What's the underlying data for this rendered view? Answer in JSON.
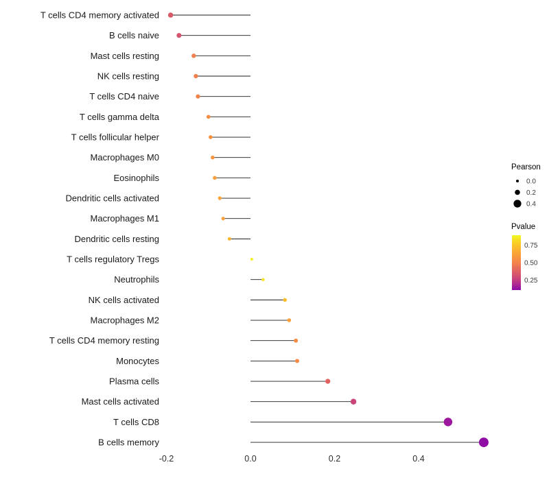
{
  "figure": {
    "background": "#ffffff",
    "stem_color": "#1a1a1a"
  },
  "chart_data": {
    "type": "scatter",
    "subtype": "lollipop",
    "orientation": "horizontal",
    "title": "",
    "xlabel": "",
    "ylabel": "",
    "grid": false,
    "xlim": [
      -0.27,
      0.6
    ],
    "x_ticks": [
      -0.2,
      0.0,
      0.2,
      0.4
    ],
    "x_tick_labels": [
      "-0.2",
      "0.0",
      "0.2",
      "0.4"
    ],
    "points": [
      {
        "label": "T cells CD4 memory activated",
        "pearson": -0.19,
        "pvalue": 0.46,
        "color": "#D85A68"
      },
      {
        "label": "B cells naive",
        "pearson": -0.17,
        "pvalue": 0.47,
        "color": "#D5546D"
      },
      {
        "label": "Mast cells resting",
        "pearson": -0.135,
        "pvalue": 0.62,
        "color": "#F0804F"
      },
      {
        "label": "NK cells resting",
        "pearson": -0.13,
        "pvalue": 0.62,
        "color": "#F0814E"
      },
      {
        "label": "T cells CD4 naive",
        "pearson": -0.125,
        "pvalue": 0.63,
        "color": "#F1854B"
      },
      {
        "label": "T cells gamma delta",
        "pearson": -0.1,
        "pvalue": 0.68,
        "color": "#F79044"
      },
      {
        "label": "T cells follicular helper",
        "pearson": -0.095,
        "pvalue": 0.68,
        "color": "#F89241"
      },
      {
        "label": "Macrophages M0",
        "pearson": -0.09,
        "pvalue": 0.69,
        "color": "#F9953F"
      },
      {
        "label": "Eosinophils",
        "pearson": -0.085,
        "pvalue": 0.71,
        "color": "#FA9D3B"
      },
      {
        "label": "Dendritic cells activated",
        "pearson": -0.073,
        "pvalue": 0.72,
        "color": "#FBA238"
      },
      {
        "label": "Macrophages M1",
        "pearson": -0.065,
        "pvalue": 0.71,
        "color": "#FA9F3A"
      },
      {
        "label": "Dendritic cells resting",
        "pearson": -0.05,
        "pvalue": 0.77,
        "color": "#FBB42F"
      },
      {
        "label": "T cells regulatory  Tregs",
        "pearson": 0.003,
        "pvalue": 0.97,
        "color": "#F3F027"
      },
      {
        "label": "Neutrophils",
        "pearson": 0.03,
        "pvalue": 0.9,
        "color": "#F7E225"
      },
      {
        "label": "NK cells activated",
        "pearson": 0.082,
        "pvalue": 0.79,
        "color": "#FBBC2C"
      },
      {
        "label": "Macrophages M2",
        "pearson": 0.092,
        "pvalue": 0.7,
        "color": "#FAA13A"
      },
      {
        "label": "T cells CD4 memory resting",
        "pearson": 0.108,
        "pvalue": 0.66,
        "color": "#F58C46"
      },
      {
        "label": "Monocytes",
        "pearson": 0.111,
        "pvalue": 0.66,
        "color": "#F58B47"
      },
      {
        "label": "Plasma cells",
        "pearson": 0.184,
        "pvalue": 0.5,
        "color": "#E16462"
      },
      {
        "label": "Mast cells activated",
        "pearson": 0.245,
        "pvalue": 0.38,
        "color": "#CA457A"
      },
      {
        "label": "T cells CD8",
        "pearson": 0.47,
        "pvalue": 0.17,
        "color": "#9C179E"
      },
      {
        "label": "B cells memory",
        "pearson": 0.555,
        "pvalue": 0.12,
        "color": "#8F0DA4"
      }
    ],
    "legend": {
      "pearson": {
        "title": "Pearson",
        "size_values": [
          0.0,
          0.2,
          0.4
        ],
        "size_labels": [
          "0.0",
          "0.2",
          "0.4"
        ],
        "dot_color": "#000000"
      },
      "pvalue": {
        "title": "Pvalue",
        "tick_values": [
          0.75,
          0.5,
          0.25
        ],
        "tick_labels": [
          "0.75",
          "0.50",
          "0.25"
        ],
        "domain_top": 0.89,
        "domain_bottom": 0.11,
        "gradient": [
          {
            "offset": 0.0,
            "color": "#F0F921"
          },
          {
            "offset": 0.14,
            "color": "#FCCE25"
          },
          {
            "offset": 0.32,
            "color": "#FCA636"
          },
          {
            "offset": 0.5,
            "color": "#F2844B"
          },
          {
            "offset": 0.64,
            "color": "#E16462"
          },
          {
            "offset": 0.78,
            "color": "#CC4778"
          },
          {
            "offset": 0.9,
            "color": "#AD2793"
          },
          {
            "offset": 1.0,
            "color": "#8B0AA5"
          }
        ]
      }
    }
  }
}
